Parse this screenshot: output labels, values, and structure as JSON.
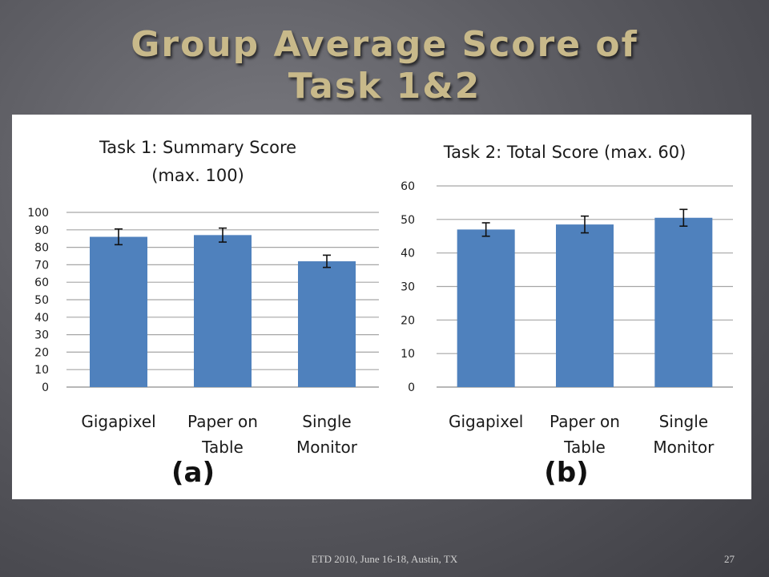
{
  "slide": {
    "title_line1": "Group Average Score of",
    "title_line2": "Task 1&2",
    "footer": "ETD 2010, June 16-18, Austin, TX",
    "page_number": "27",
    "colors": {
      "bar": "#4f81bd",
      "title": "#c8b98a",
      "grid": "#a6a6a6"
    }
  },
  "chart_data": [
    {
      "type": "bar",
      "title_lines": [
        "Task 1: Summary Score",
        "(max. 100)"
      ],
      "panel_label": "(a)",
      "categories": [
        [
          "Gigapixel"
        ],
        [
          "Paper on",
          "Table"
        ],
        [
          "Single",
          "Monitor"
        ]
      ],
      "values": [
        86,
        87,
        72
      ],
      "error": [
        4.5,
        4,
        3.5
      ],
      "ylim": [
        0,
        100
      ],
      "yticks": [
        0,
        10,
        20,
        30,
        40,
        50,
        60,
        70,
        80,
        90,
        100
      ],
      "grid": true
    },
    {
      "type": "bar",
      "title_lines": [
        "Task 2: Total Score (max. 60)"
      ],
      "panel_label": "(b)",
      "categories": [
        [
          "Gigapixel"
        ],
        [
          "Paper on",
          "Table"
        ],
        [
          "Single",
          "Monitor"
        ]
      ],
      "values": [
        47,
        48.5,
        50.5
      ],
      "error": [
        2,
        2.5,
        2.5
      ],
      "ylim": [
        0,
        60
      ],
      "yticks": [
        0,
        10,
        20,
        30,
        40,
        50,
        60
      ],
      "grid": true
    }
  ]
}
